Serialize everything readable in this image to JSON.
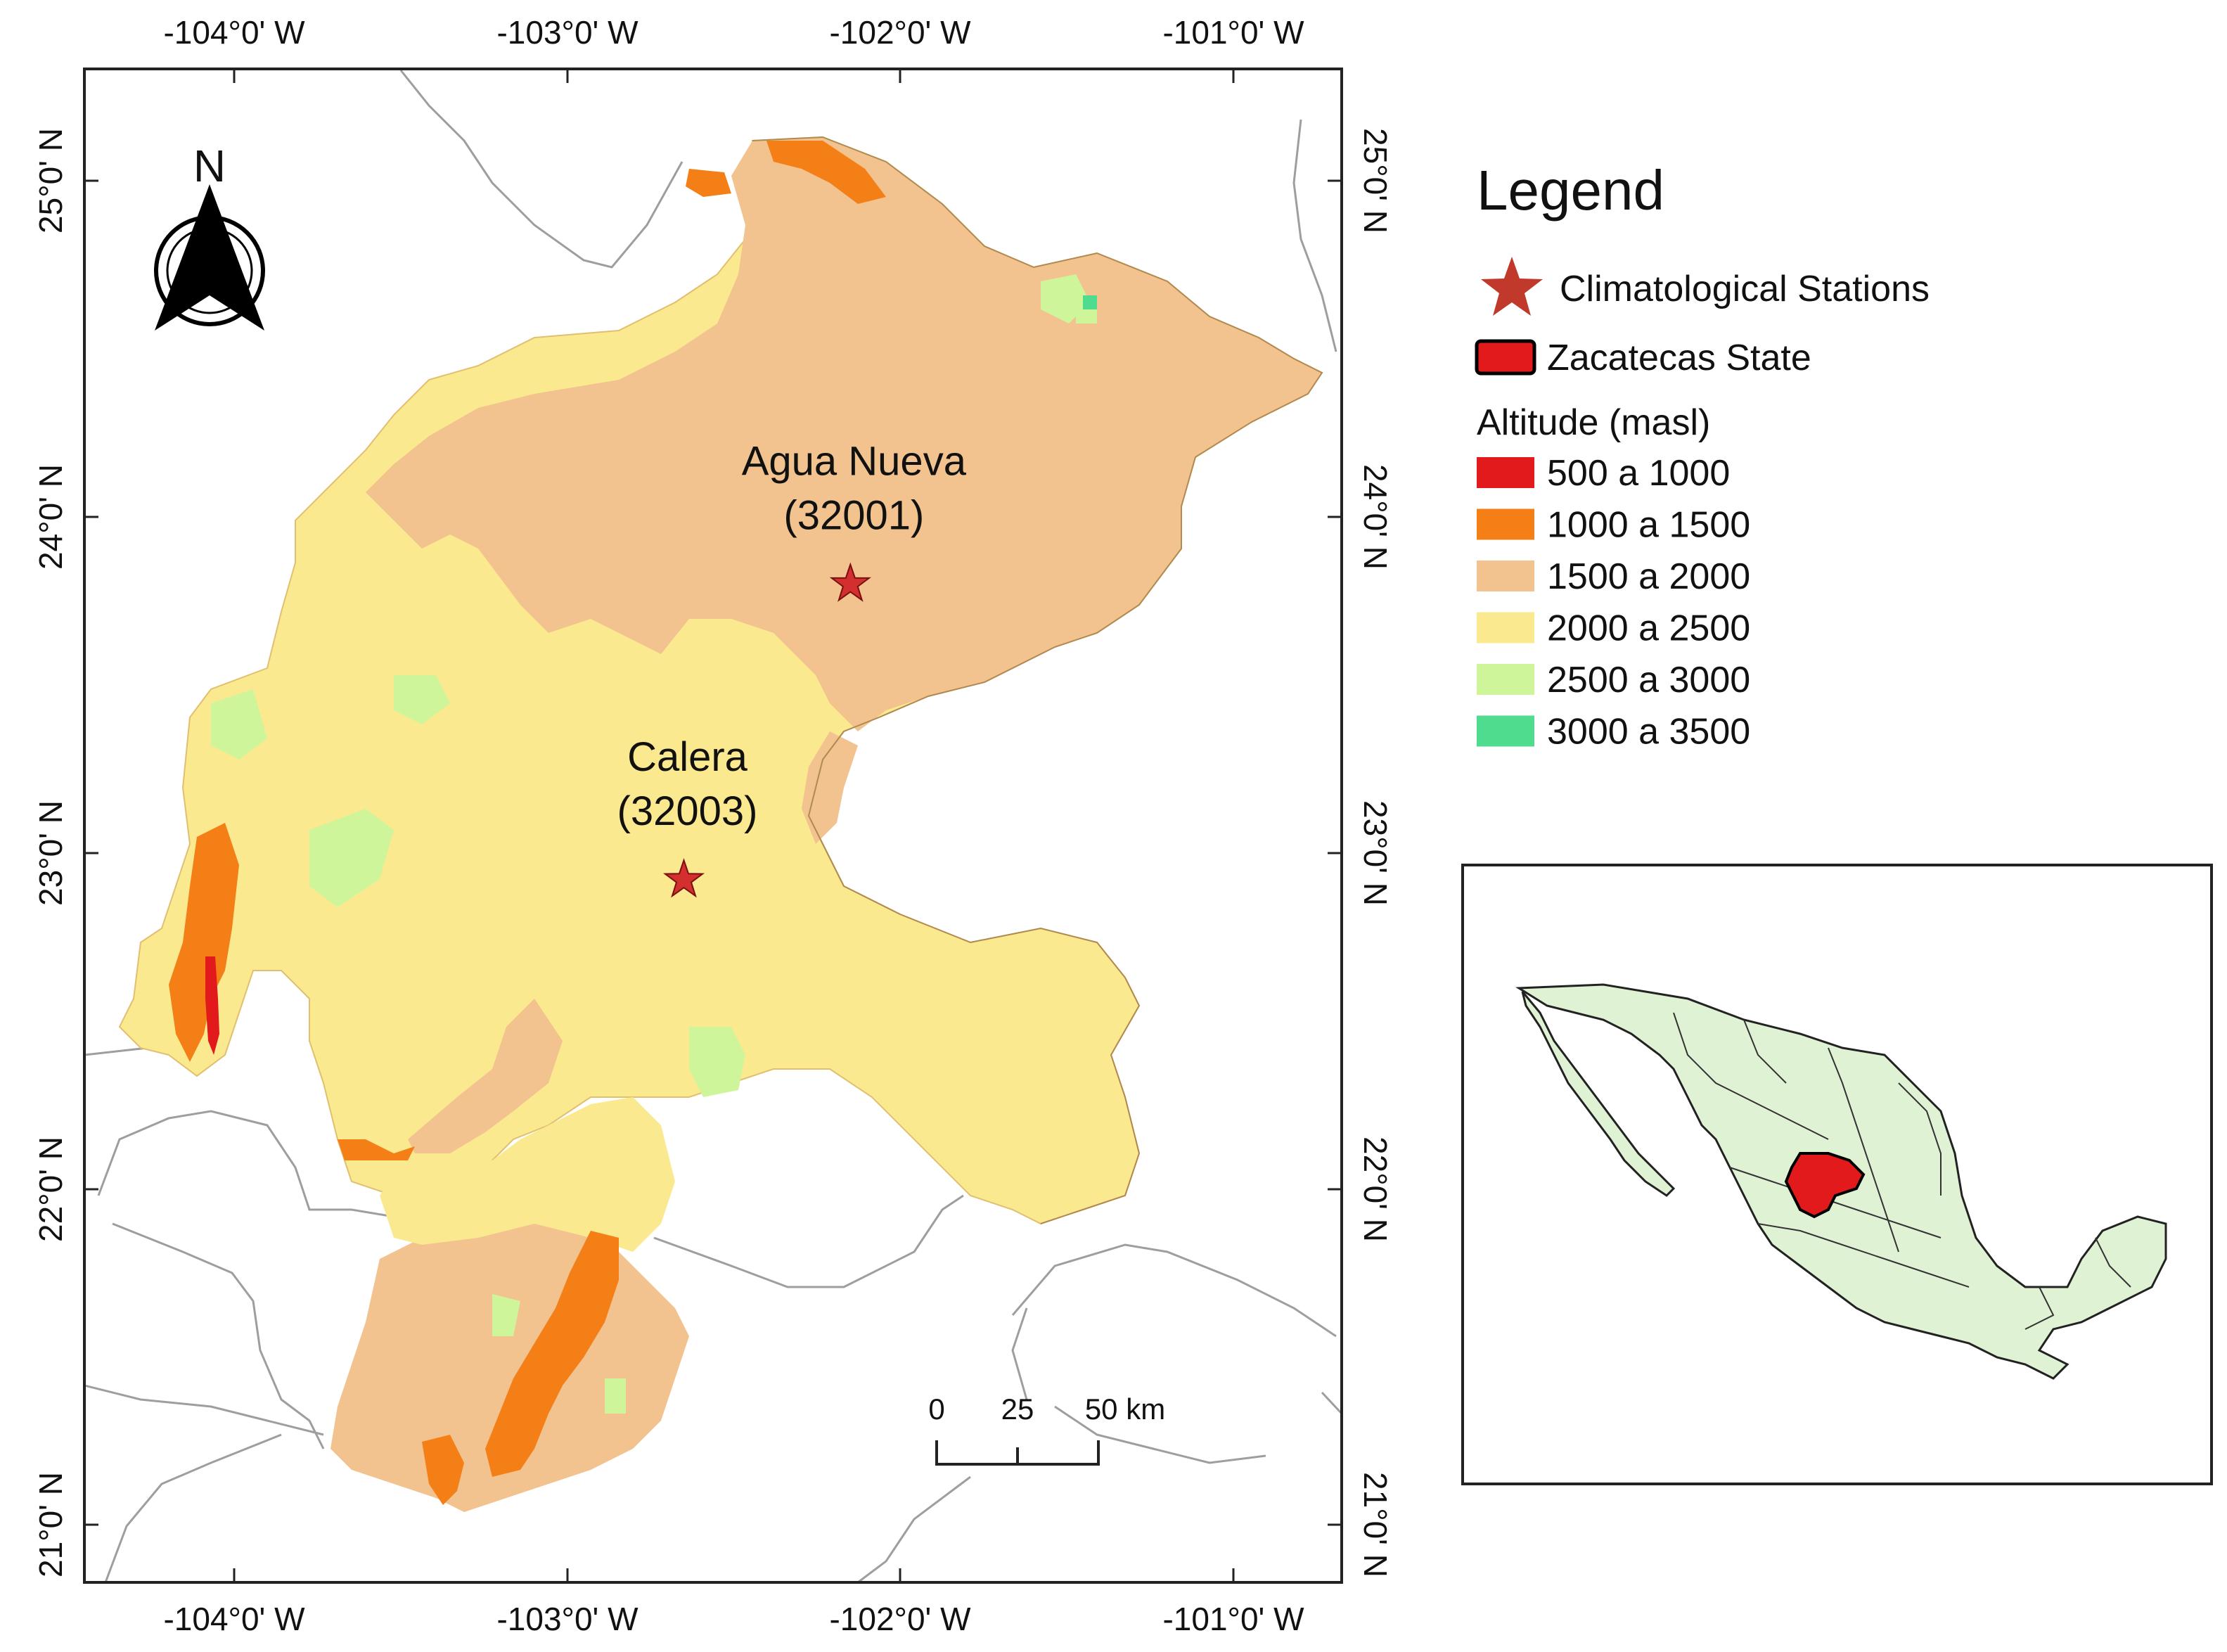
{
  "axes": {
    "top_labels": [
      "-104°0' W",
      "-103°0' W",
      "-102°0' W",
      "-101°0' W"
    ],
    "bottom_labels": [
      "-104°0' W",
      "-103°0' W",
      "-102°0' W",
      "-101°0' W"
    ],
    "left_labels": [
      "25°0' N",
      "24°0' N",
      "23°0' N",
      "22°0' N",
      "21°0' N"
    ],
    "right_labels": [
      "25°0' N",
      "24°0' N",
      "23°0' N",
      "22°0' N",
      "21°0' N"
    ]
  },
  "stations": [
    {
      "name": "Agua Nueva",
      "code": "(32001)",
      "lon": -102.15,
      "lat": 23.8
    },
    {
      "name": "Calera",
      "code": "(32003)",
      "lon": -102.65,
      "lat": 22.92
    }
  ],
  "north_arrow": {
    "label": "N"
  },
  "scale_bar": {
    "labels": [
      "0",
      "25",
      "50 km"
    ]
  },
  "legend": {
    "title": "Legend",
    "stations_label": "Climatological Stations",
    "state_label": "Zacatecas State",
    "altitude_title": "Altitude (masl)",
    "classes": [
      {
        "label": "500 a 1000",
        "color": "#e31a1c"
      },
      {
        "label": "1000 a 1500",
        "color": "#f57f17"
      },
      {
        "label": "1500 a 2000",
        "color": "#f2c38f"
      },
      {
        "label": "2000 a 2500",
        "color": "#fbe98f"
      },
      {
        "label": "2500 a 3000",
        "color": "#cff59b"
      },
      {
        "label": "3000 a 3500",
        "color": "#4fdc8f"
      }
    ]
  },
  "colors": {
    "station_star": "#d32f2f",
    "state_fill": "#e31a1c",
    "inset_land": "#e0f2d4",
    "boundary": "#9e9e9e"
  }
}
